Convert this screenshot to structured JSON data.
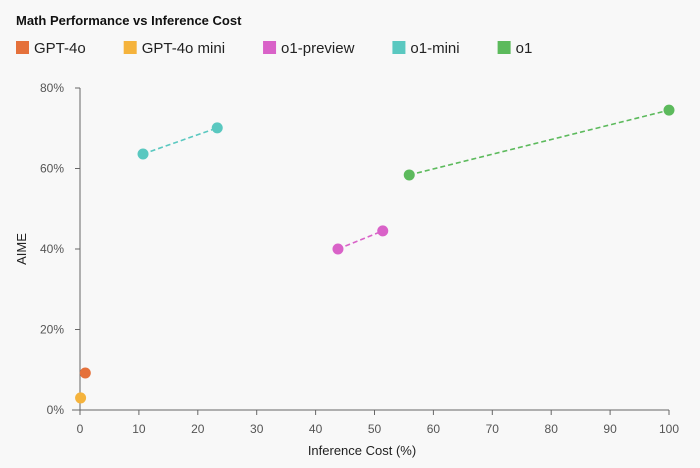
{
  "chart_data": {
    "type": "scatter",
    "title": "Math Performance vs Inference Cost",
    "xlabel": "Inference Cost (%)",
    "ylabel": "AIME",
    "xlim": [
      0,
      100
    ],
    "ylim": [
      0,
      80
    ],
    "xticks": [
      0,
      10,
      20,
      30,
      40,
      50,
      60,
      70,
      80,
      90,
      100
    ],
    "yticks": [
      0,
      20,
      40,
      60,
      80
    ],
    "ytick_labels": [
      "0%",
      "20%",
      "40%",
      "60%",
      "80%"
    ],
    "grid": false,
    "legend_position": "top-left",
    "series": [
      {
        "name": "GPT-4o",
        "color": "#e5713b",
        "points": [
          [
            0.9,
            9.2
          ]
        ]
      },
      {
        "name": "GPT-4o mini",
        "color": "#f5b33c",
        "points": [
          [
            0.1,
            3.0
          ]
        ]
      },
      {
        "name": "o1-preview",
        "color": "#d962c8",
        "points": [
          [
            43.8,
            40.0
          ],
          [
            51.4,
            44.5
          ]
        ]
      },
      {
        "name": "o1-mini",
        "color": "#5ac8c0",
        "points": [
          [
            10.7,
            63.6
          ],
          [
            23.3,
            70.1
          ]
        ]
      },
      {
        "name": "o1",
        "color": "#5cba5c",
        "points": [
          [
            55.9,
            58.4
          ],
          [
            100,
            74.5
          ]
        ]
      }
    ]
  }
}
